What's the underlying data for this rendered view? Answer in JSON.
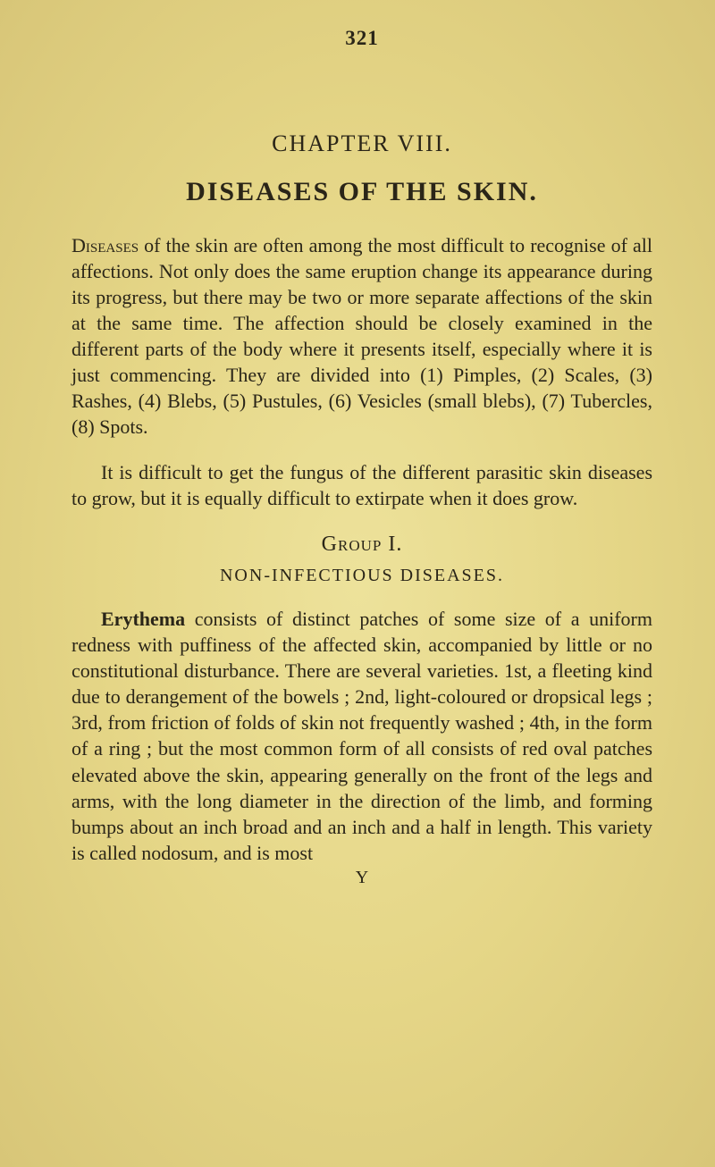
{
  "page": {
    "number": "321",
    "chapter_label": "CHAPTER VIII.",
    "chapter_title": "DISEASES OF THE SKIN.",
    "paragraph1_lead": "Diseases",
    "paragraph1_rest": " of the skin are often among the most difficult to recognise of all affections. Not only does the same eruption change its appearance during its progress, but there may be two or more separate affections of the skin at the same time. The affection should be closely examined in the different parts of the body where it presents itself, especially where it is just commencing. They are divided into (1) Pimples, (2) Scales, (3) Rashes, (4) Blebs, (5) Pustules, (6) Vesicles (small blebs), (7) Tubercles, (8) Spots.",
    "paragraph2": "It is difficult to get the fungus of the different parasitic skin diseases to grow, but it is equally difficult to extirpate when it does grow.",
    "group_label": "Group I.",
    "section_heading": "NON-INFECTIOUS DISEASES.",
    "paragraph3_lead": "Erythema",
    "paragraph3_rest": " consists of distinct patches of some size of a uniform redness with puffiness of the affected skin, accompanied by little or no constitutional disturbance. There are several varieties. 1st, a fleeting kind due to derangement of the bowels ; 2nd, light-coloured or dropsical legs ; 3rd, from friction of folds of skin not frequently washed ; 4th, in the form of a ring ; but the most common form of all consists of red oval patches elevated above the skin, appearing generally on the front of the legs and arms, with the long diameter in the direction of the limb, and forming bumps about an inch broad and an inch and a half in length. This variety is called nodosum, and is most",
    "footer_sig": "Y"
  },
  "colors": {
    "background": "#e8d98a",
    "text": "#2a2518"
  },
  "typography": {
    "page_number_size": 23,
    "chapter_label_size": 26,
    "chapter_title_size": 30,
    "body_size": 22,
    "group_label_size": 24,
    "section_heading_size": 20,
    "font_family": "Times New Roman"
  }
}
